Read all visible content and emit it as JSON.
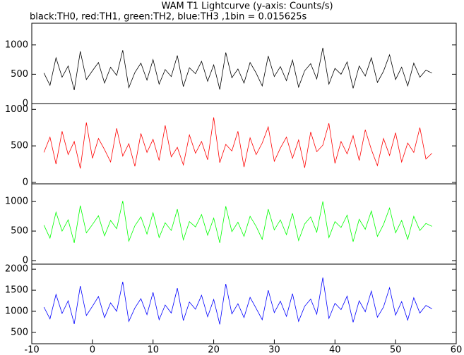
{
  "chart_data": [
    {
      "type": "line",
      "title": "WAM T1 Lightcurve (y-axis: Counts/s)",
      "subtitle": "black:TH0, red:TH1, green:TH2, blue:TH3 ,1bin = 0.015625s",
      "x": [
        -8,
        -7,
        -6,
        -5,
        -4,
        -3,
        -2,
        -1,
        0,
        1,
        2,
        3,
        4,
        5,
        6,
        7,
        8,
        9,
        10,
        11,
        12,
        13,
        14,
        15,
        16,
        17,
        18,
        19,
        20,
        21,
        22,
        23,
        24,
        25,
        26,
        27,
        28,
        29,
        30,
        31,
        32,
        33,
        34,
        35,
        36,
        37,
        38,
        39,
        40,
        41,
        42,
        43,
        44,
        45,
        46,
        47,
        48,
        49,
        50,
        51,
        52,
        53,
        54,
        55,
        56
      ],
      "series": [
        {
          "color": "#000000",
          "values": [
            520,
            310,
            780,
            450,
            640,
            230,
            890,
            410,
            560,
            700,
            350,
            620,
            480,
            910,
            270,
            530,
            690,
            400,
            750,
            330,
            580,
            460,
            820,
            290,
            610,
            510,
            720,
            380,
            660,
            240,
            870,
            440,
            590,
            350,
            700,
            520,
            300,
            810,
            460,
            630,
            390,
            740,
            280,
            560,
            680,
            420,
            950,
            330,
            600,
            500,
            710,
            260,
            640,
            470,
            780,
            360,
            550,
            830,
            410,
            620,
            300,
            690,
            450,
            570,
            520
          ]
        }
      ],
      "xlim": [
        -10,
        60
      ],
      "ylim": [
        0,
        1370
      ],
      "yticks": [
        0,
        500,
        1000
      ]
    },
    {
      "type": "line",
      "x": [
        -8,
        -7,
        -6,
        -5,
        -4,
        -3,
        -2,
        -1,
        0,
        1,
        2,
        3,
        4,
        5,
        6,
        7,
        8,
        9,
        10,
        11,
        12,
        13,
        14,
        15,
        16,
        17,
        18,
        19,
        20,
        21,
        22,
        23,
        24,
        25,
        26,
        27,
        28,
        29,
        30,
        31,
        32,
        33,
        34,
        35,
        36,
        37,
        38,
        39,
        40,
        41,
        42,
        43,
        44,
        45,
        46,
        47,
        48,
        49,
        50,
        51,
        52,
        53,
        54,
        55,
        56
      ],
      "series": [
        {
          "color": "#ff0000",
          "values": [
            410,
            620,
            250,
            700,
            380,
            560,
            190,
            820,
            330,
            600,
            450,
            280,
            740,
            360,
            530,
            220,
            670,
            410,
            590,
            300,
            780,
            350,
            480,
            240,
            650,
            400,
            560,
            310,
            890,
            270,
            520,
            430,
            700,
            210,
            610,
            380,
            540,
            760,
            290,
            470,
            620,
            330,
            580,
            200,
            690,
            420,
            510,
            810,
            260,
            560,
            390,
            640,
            300,
            720,
            450,
            230,
            600,
            370,
            680,
            280,
            540,
            410,
            750,
            320,
            400
          ]
        }
      ],
      "xlim": [
        -10,
        60
      ],
      "ylim": [
        -20,
        1080
      ],
      "yticks": [
        0,
        500,
        1000
      ]
    },
    {
      "type": "line",
      "x": [
        -8,
        -7,
        -6,
        -5,
        -4,
        -3,
        -2,
        -1,
        0,
        1,
        2,
        3,
        4,
        5,
        6,
        7,
        8,
        9,
        10,
        11,
        12,
        13,
        14,
        15,
        16,
        17,
        18,
        19,
        20,
        21,
        22,
        23,
        24,
        25,
        26,
        27,
        28,
        29,
        30,
        31,
        32,
        33,
        34,
        35,
        36,
        37,
        38,
        39,
        40,
        41,
        42,
        43,
        44,
        45,
        46,
        47,
        48,
        49,
        50,
        51,
        52,
        53,
        54,
        55,
        56
      ],
      "series": [
        {
          "color": "#00ff00",
          "values": [
            600,
            380,
            820,
            500,
            690,
            300,
            930,
            470,
            610,
            760,
            420,
            680,
            540,
            1010,
            330,
            590,
            740,
            450,
            810,
            390,
            640,
            510,
            870,
            350,
            660,
            570,
            780,
            430,
            720,
            300,
            920,
            490,
            650,
            410,
            750,
            580,
            360,
            870,
            520,
            690,
            440,
            800,
            340,
            620,
            740,
            480,
            1000,
            390,
            660,
            560,
            770,
            320,
            700,
            530,
            840,
            410,
            610,
            890,
            470,
            680,
            360,
            750,
            510,
            630,
            580
          ]
        }
      ],
      "xlim": [
        -10,
        60
      ],
      "ylim": [
        -60,
        1300
      ],
      "yticks": [
        0,
        500,
        1000
      ]
    },
    {
      "type": "line",
      "x": [
        -8,
        -7,
        -6,
        -5,
        -4,
        -3,
        -2,
        -1,
        0,
        1,
        2,
        3,
        4,
        5,
        6,
        7,
        8,
        9,
        10,
        11,
        12,
        13,
        14,
        15,
        16,
        17,
        18,
        19,
        20,
        21,
        22,
        23,
        24,
        25,
        26,
        27,
        28,
        29,
        30,
        31,
        32,
        33,
        34,
        35,
        36,
        37,
        38,
        39,
        40,
        41,
        42,
        43,
        44,
        45,
        46,
        47,
        48,
        49,
        50,
        51,
        52,
        53,
        54,
        55,
        56
      ],
      "series": [
        {
          "color": "#0000ff",
          "values": [
            1100,
            820,
            1400,
            950,
            1250,
            700,
            1600,
            900,
            1120,
            1350,
            850,
            1200,
            1000,
            1700,
            760,
            1080,
            1300,
            920,
            1450,
            800,
            1150,
            960,
            1550,
            780,
            1220,
            1050,
            1380,
            870,
            1280,
            690,
            1650,
            940,
            1180,
            850,
            1330,
            1070,
            800,
            1500,
            970,
            1240,
            880,
            1420,
            760,
            1120,
            1290,
            930,
            1800,
            830,
            1190,
            1040,
            1360,
            740,
            1250,
            990,
            1480,
            860,
            1100,
            1560,
            910,
            1230,
            790,
            1320,
            960,
            1140,
            1060
          ]
        }
      ],
      "xlim": [
        -10,
        60
      ],
      "ylim": [
        230,
        2120
      ],
      "yticks": [
        500,
        1000,
        1500,
        2000
      ],
      "xticks": [
        -10,
        0,
        10,
        20,
        30,
        40,
        50,
        60
      ]
    }
  ]
}
